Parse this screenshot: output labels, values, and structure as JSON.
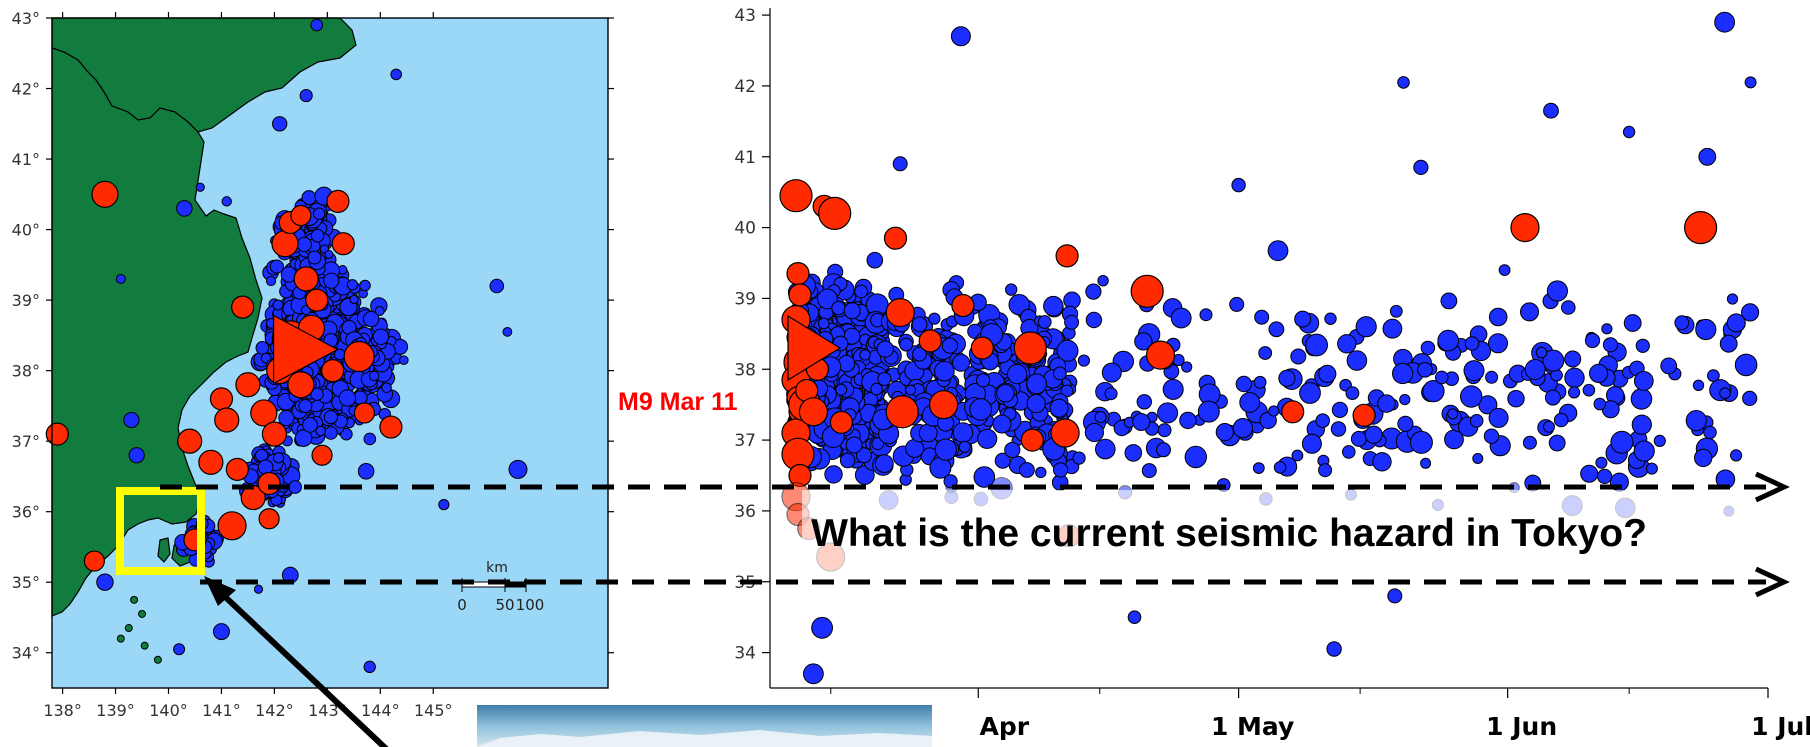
{
  "colors": {
    "ocean": "#9bd8f8",
    "land": "#127c3e",
    "small_event": "#1b2dff",
    "large_event": "#ff2a00",
    "highlight_box": "#ffff00",
    "annotation_red": "#ff0000"
  },
  "map": {
    "lon_ticks": [
      "138°",
      "139°",
      "140°",
      "141°",
      "142°",
      "143°",
      "144°",
      "145°"
    ],
    "lat_ticks": [
      "43°",
      "42°",
      "41°",
      "40°",
      "39°",
      "38°",
      "37°",
      "36°",
      "35°",
      "34°"
    ],
    "scale_label": "km",
    "scale_ticks": [
      "0",
      "50",
      "100"
    ],
    "mainshock": {
      "lon": 142.4,
      "lat": 38.3
    }
  },
  "annotations": {
    "mainshock_label": "M9 Mar 11",
    "question": "What is the current seismic hazard in Tokyo?"
  },
  "chart_data": {
    "type": "scatter",
    "x_axis": "date",
    "x_tick_labels": [
      "Apr",
      "1 May",
      "1 Jun",
      "1 Jul"
    ],
    "y_tick_labels": [
      "43",
      "42",
      "41",
      "40",
      "39",
      "38",
      "37",
      "36",
      "35",
      "34"
    ],
    "ylim": [
      33.5,
      43.1
    ],
    "xlim": [
      "2011-03-08",
      "2011-07-01"
    ],
    "highlight_band_lat": [
      35.0,
      36.35
    ],
    "mainshock": {
      "date": "2011-03-11",
      "lat": 38.3
    },
    "large_events": [
      {
        "date": "2011-03-11",
        "lat": 40.45
      },
      {
        "date": "2011-03-11",
        "lat": 39.35
      },
      {
        "date": "2011-03-11",
        "lat": 39.05
      },
      {
        "date": "2011-03-11",
        "lat": 38.7
      },
      {
        "date": "2011-03-11",
        "lat": 38.45
      },
      {
        "date": "2011-03-11",
        "lat": 38.1
      },
      {
        "date": "2011-03-11",
        "lat": 37.85
      },
      {
        "date": "2011-03-11",
        "lat": 37.6
      },
      {
        "date": "2011-03-11",
        "lat": 37.4
      },
      {
        "date": "2011-03-11",
        "lat": 37.1
      },
      {
        "date": "2011-03-11",
        "lat": 36.8
      },
      {
        "date": "2011-03-11",
        "lat": 36.5
      },
      {
        "date": "2011-03-11",
        "lat": 36.2
      },
      {
        "date": "2011-03-11",
        "lat": 35.95
      },
      {
        "date": "2011-03-12",
        "lat": 35.75
      },
      {
        "date": "2011-03-12",
        "lat": 37.5
      },
      {
        "date": "2011-03-12",
        "lat": 37.7
      },
      {
        "date": "2011-03-13",
        "lat": 38.0
      },
      {
        "date": "2011-03-13",
        "lat": 37.4
      },
      {
        "date": "2011-03-14",
        "lat": 40.3
      },
      {
        "date": "2011-03-15",
        "lat": 40.2
      },
      {
        "date": "2011-03-15",
        "lat": 35.35
      },
      {
        "date": "2011-03-16",
        "lat": 37.25
      },
      {
        "date": "2011-03-22",
        "lat": 39.85
      },
      {
        "date": "2011-03-23",
        "lat": 38.8
      },
      {
        "date": "2011-03-23",
        "lat": 37.4
      },
      {
        "date": "2011-03-26",
        "lat": 38.4
      },
      {
        "date": "2011-03-28",
        "lat": 37.5
      },
      {
        "date": "2011-03-30",
        "lat": 38.9
      },
      {
        "date": "2011-04-01",
        "lat": 38.3
      },
      {
        "date": "2011-04-07",
        "lat": 38.3
      },
      {
        "date": "2011-04-07",
        "lat": 37.0
      },
      {
        "date": "2011-04-11",
        "lat": 35.65
      },
      {
        "date": "2011-04-11",
        "lat": 37.1
      },
      {
        "date": "2011-04-11",
        "lat": 39.6
      },
      {
        "date": "2011-04-20",
        "lat": 39.1
      },
      {
        "date": "2011-04-22",
        "lat": 38.2
      },
      {
        "date": "2011-05-07",
        "lat": 37.4
      },
      {
        "date": "2011-05-15",
        "lat": 37.35
      },
      {
        "date": "2011-06-03",
        "lat": 40.0
      },
      {
        "date": "2011-06-23",
        "lat": 40.0
      }
    ]
  }
}
